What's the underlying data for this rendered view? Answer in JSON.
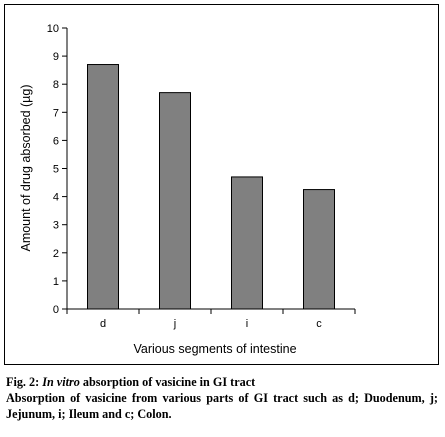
{
  "chart_data": {
    "type": "bar",
    "categories": [
      "d",
      "j",
      "i",
      "c"
    ],
    "values": [
      8.7,
      7.7,
      4.7,
      4.25
    ],
    "title": "",
    "xlabel": "Various segments of intestine",
    "ylabel": "Amount of drug absorbed (µg)",
    "ylim": [
      0,
      10
    ],
    "yticks": [
      "0",
      "1",
      "2",
      "3",
      "4",
      "5",
      "6",
      "7",
      "8",
      "9",
      "10"
    ],
    "grid": false,
    "bar_color": "#808080"
  },
  "caption": {
    "fig_label": "Fig. 2:",
    "italic_text": "In vitro",
    "title_rest": "absorption of vasicine in GI tract",
    "description": "Absorption of vasicine from various parts of GI tract such as d; Duodenum, j; Jejunum, i; Ileum and c; Colon."
  }
}
